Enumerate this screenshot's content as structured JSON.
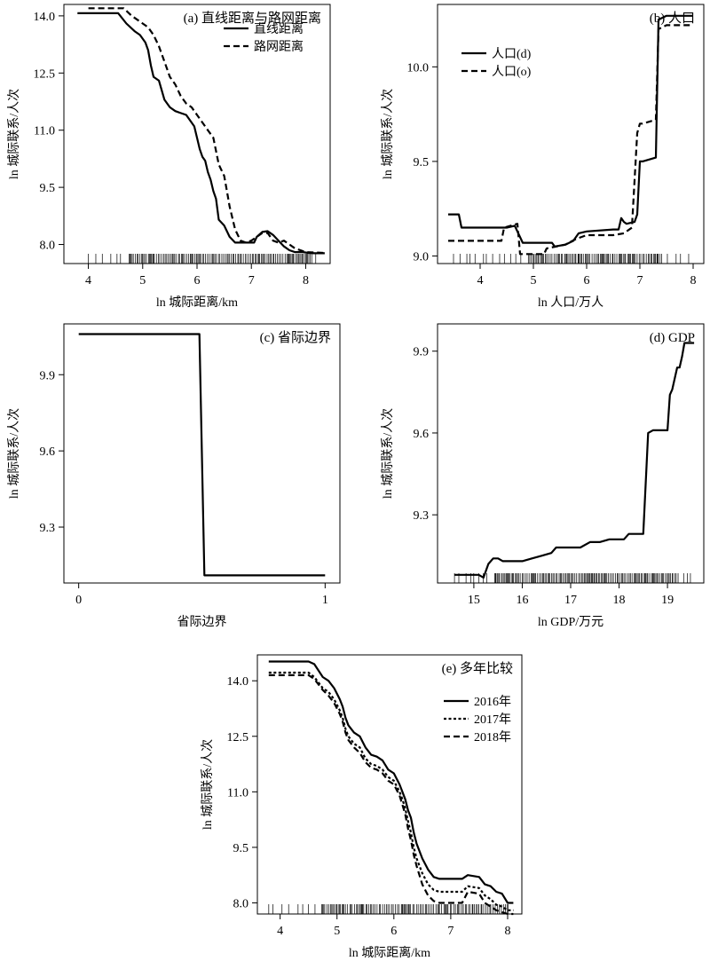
{
  "chart_data": [
    {
      "id": "a",
      "type": "line",
      "title": "(a) 直线距离与路网距离",
      "xlabel": "ln 城际距离/km",
      "ylabel": "ln 城际联系/人次",
      "xlim": [
        3.55,
        8.45
      ],
      "ylim": [
        7.5,
        14.3
      ],
      "xticks": [
        4,
        5,
        6,
        7,
        8
      ],
      "xtick_labels": [
        "4",
        "5",
        "6",
        "7",
        "8"
      ],
      "yticks": [
        8.0,
        9.5,
        11.0,
        12.5,
        14.0
      ],
      "ytick_labels": [
        "8.0",
        "9.5",
        "11.0",
        "12.5",
        "14.0"
      ],
      "legend_position": "top-right",
      "rug": {
        "from": 4.0,
        "to": 8.3,
        "dense_from": 4.6,
        "dense_to": 8.1
      },
      "series": [
        {
          "name": "直线距离",
          "dash": "solid",
          "x": [
            3.8,
            4.55,
            4.7,
            4.85,
            4.95,
            5.05,
            5.1,
            5.15,
            5.2,
            5.3,
            5.4,
            5.5,
            5.6,
            5.7,
            5.8,
            5.85,
            5.95,
            6.0,
            6.05,
            6.1,
            6.15,
            6.2,
            6.25,
            6.3,
            6.35,
            6.4,
            6.5,
            6.6,
            6.7,
            6.8,
            6.9,
            7.0,
            7.05,
            7.1,
            7.2,
            7.3,
            7.4,
            7.5,
            7.6,
            7.7,
            7.8,
            7.95,
            8.05,
            8.15,
            8.35
          ],
          "y": [
            14.07,
            14.07,
            13.8,
            13.6,
            13.5,
            13.3,
            13.1,
            12.7,
            12.4,
            12.3,
            11.8,
            11.6,
            11.5,
            11.45,
            11.4,
            11.3,
            11.1,
            10.8,
            10.5,
            10.3,
            10.2,
            9.9,
            9.7,
            9.4,
            9.2,
            8.65,
            8.5,
            8.2,
            8.05,
            8.05,
            8.05,
            8.05,
            8.05,
            8.2,
            8.33,
            8.35,
            8.25,
            8.1,
            7.95,
            7.85,
            7.8,
            7.8,
            7.78,
            7.77,
            7.77
          ]
        },
        {
          "name": "路网距离",
          "dash": "dashed",
          "x": [
            4.0,
            4.65,
            4.8,
            5.0,
            5.1,
            5.2,
            5.3,
            5.4,
            5.5,
            5.6,
            5.7,
            5.8,
            5.9,
            6.0,
            6.1,
            6.2,
            6.3,
            6.4,
            6.5,
            6.55,
            6.6,
            6.7,
            6.8,
            6.9,
            7.0,
            7.1,
            7.2,
            7.3,
            7.4,
            7.5,
            7.6,
            7.7,
            7.8,
            8.0,
            8.35
          ],
          "y": [
            14.2,
            14.2,
            14.0,
            13.8,
            13.7,
            13.5,
            13.2,
            12.8,
            12.4,
            12.2,
            11.9,
            11.7,
            11.6,
            11.4,
            11.2,
            11.0,
            10.8,
            10.1,
            9.8,
            9.4,
            9.0,
            8.4,
            8.1,
            8.05,
            8.1,
            8.2,
            8.3,
            8.3,
            8.1,
            8.05,
            8.1,
            8.0,
            7.9,
            7.8,
            7.78
          ]
        }
      ]
    },
    {
      "id": "b",
      "type": "line",
      "title": "(b) 人口",
      "xlabel": "ln 人口/万人",
      "ylabel": "ln 城际联系/人次",
      "xlim": [
        3.2,
        8.2
      ],
      "ylim": [
        8.96,
        10.33
      ],
      "xticks": [
        4,
        5,
        6,
        7,
        8
      ],
      "xtick_labels": [
        "4",
        "5",
        "6",
        "7",
        "8"
      ],
      "yticks": [
        9.0,
        9.5,
        10.0
      ],
      "ytick_labels": [
        "9.0",
        "9.5",
        "10.0"
      ],
      "legend_position": "top-left",
      "rug": {
        "from": 3.5,
        "to": 8.0,
        "dense_from": 4.9,
        "dense_to": 7.4
      },
      "series": [
        {
          "name": "人口(d)",
          "dash": "solid",
          "x": [
            3.4,
            3.6,
            3.65,
            4.5,
            4.65,
            4.8,
            4.85,
            5.35,
            5.4,
            5.6,
            5.75,
            5.85,
            6.0,
            6.5,
            6.6,
            6.65,
            6.7,
            6.75,
            6.9,
            6.95,
            7.0,
            7.05,
            7.3,
            7.35,
            7.5,
            8.0
          ],
          "y": [
            9.22,
            9.22,
            9.15,
            9.15,
            9.16,
            9.07,
            9.07,
            9.07,
            9.05,
            9.06,
            9.08,
            9.12,
            9.13,
            9.14,
            9.14,
            9.2,
            9.18,
            9.17,
            9.18,
            9.22,
            9.5,
            9.5,
            9.52,
            10.25,
            10.27,
            10.27
          ]
        },
        {
          "name": "人口(o)",
          "dash": "dashed",
          "x": [
            3.4,
            4.4,
            4.45,
            4.7,
            4.75,
            5.2,
            5.25,
            5.6,
            5.8,
            6.0,
            6.5,
            6.7,
            6.85,
            6.95,
            7.0,
            7.05,
            7.3,
            7.35,
            7.5,
            8.0
          ],
          "y": [
            9.08,
            9.08,
            9.15,
            9.17,
            9.01,
            9.01,
            9.04,
            9.06,
            9.09,
            9.11,
            9.11,
            9.12,
            9.15,
            9.65,
            9.7,
            9.7,
            9.72,
            10.2,
            10.22,
            10.22
          ]
        }
      ]
    },
    {
      "id": "c",
      "type": "line",
      "title": "(c) 省际边界",
      "xlabel": "省际边界",
      "ylabel": "ln 城际联系/人次",
      "xlim": [
        -0.06,
        1.06
      ],
      "ylim": [
        9.08,
        10.1
      ],
      "xticks": [
        0,
        1
      ],
      "xtick_labels": [
        "0",
        "1"
      ],
      "yticks": [
        9.3,
        9.6,
        9.9
      ],
      "ytick_labels": [
        "9.3",
        "9.6",
        "9.9"
      ],
      "legend_position": "none",
      "series": [
        {
          "name": "",
          "dash": "solid",
          "x": [
            0,
            0.49,
            0.51,
            1.0
          ],
          "y": [
            10.06,
            10.06,
            9.11,
            9.11
          ]
        }
      ]
    },
    {
      "id": "d",
      "type": "line",
      "title": "(d) GDP",
      "xlabel": "ln GDP/万元",
      "ylabel": "ln 城际联系/人次",
      "xlim": [
        14.25,
        19.75
      ],
      "ylim": [
        9.05,
        10.0
      ],
      "xticks": [
        15,
        16,
        17,
        18,
        19
      ],
      "xtick_labels": [
        "15",
        "16",
        "17",
        "18",
        "19"
      ],
      "yticks": [
        9.3,
        9.6,
        9.9
      ],
      "ytick_labels": [
        "9.3",
        "9.6",
        "9.9"
      ],
      "legend_position": "none",
      "rug": {
        "from": 14.6,
        "to": 19.5,
        "dense_from": 15.4,
        "dense_to": 19.2
      },
      "series": [
        {
          "name": "",
          "dash": "solid",
          "x": [
            14.6,
            15.1,
            15.2,
            15.3,
            15.4,
            15.5,
            15.6,
            16.0,
            16.2,
            16.4,
            16.6,
            16.7,
            16.9,
            17.2,
            17.4,
            17.6,
            17.8,
            18.1,
            18.2,
            18.5,
            18.6,
            18.7,
            19.0,
            19.05,
            19.1,
            19.2,
            19.25,
            19.3,
            19.35,
            19.4,
            19.55
          ],
          "y": [
            9.08,
            9.08,
            9.07,
            9.12,
            9.14,
            9.14,
            9.13,
            9.13,
            9.14,
            9.15,
            9.16,
            9.18,
            9.18,
            9.18,
            9.2,
            9.2,
            9.21,
            9.21,
            9.23,
            9.23,
            9.6,
            9.61,
            9.61,
            9.74,
            9.76,
            9.84,
            9.84,
            9.88,
            9.93,
            9.93,
            9.93
          ]
        }
      ]
    },
    {
      "id": "e",
      "type": "line",
      "title": "(e) 多年比较",
      "xlabel": "ln 城际距离/km",
      "ylabel": "ln 城际联系/人次",
      "xlim": [
        3.6,
        8.25
      ],
      "ylim": [
        7.7,
        14.7
      ],
      "xticks": [
        4,
        5,
        6,
        7,
        8
      ],
      "xtick_labels": [
        "4",
        "5",
        "6",
        "7",
        "8"
      ],
      "yticks": [
        8.0,
        9.5,
        11.0,
        12.5,
        14.0
      ],
      "ytick_labels": [
        "8.0",
        "9.5",
        "11.0",
        "12.5",
        "14.0"
      ],
      "legend_position": "right",
      "rug": {
        "from": 3.8,
        "to": 8.1,
        "dense_from": 4.7,
        "dense_to": 8.0
      },
      "series": [
        {
          "name": "2016年",
          "dash": "solid",
          "x": [
            3.8,
            4.5,
            4.6,
            4.75,
            4.85,
            4.95,
            5.05,
            5.1,
            5.15,
            5.2,
            5.3,
            5.4,
            5.5,
            5.6,
            5.7,
            5.8,
            5.9,
            6.0,
            6.1,
            6.15,
            6.2,
            6.25,
            6.3,
            6.35,
            6.4,
            6.5,
            6.6,
            6.7,
            6.8,
            7.0,
            7.2,
            7.3,
            7.5,
            7.6,
            7.7,
            7.8,
            7.9,
            8.0,
            8.1
          ],
          "y": [
            14.52,
            14.52,
            14.45,
            14.1,
            14.0,
            13.8,
            13.5,
            13.3,
            13.0,
            12.8,
            12.6,
            12.5,
            12.2,
            12.0,
            11.95,
            11.85,
            11.6,
            11.5,
            11.2,
            11.0,
            10.8,
            10.5,
            10.3,
            9.9,
            9.6,
            9.2,
            8.9,
            8.7,
            8.65,
            8.65,
            8.65,
            8.75,
            8.7,
            8.5,
            8.45,
            8.3,
            8.25,
            8.0,
            8.0
          ]
        },
        {
          "name": "2017年",
          "dash": "dotted",
          "x": [
            3.8,
            4.5,
            4.6,
            4.75,
            4.85,
            4.95,
            5.05,
            5.1,
            5.15,
            5.2,
            5.3,
            5.4,
            5.5,
            5.6,
            5.7,
            5.8,
            5.9,
            6.0,
            6.1,
            6.15,
            6.2,
            6.25,
            6.3,
            6.35,
            6.4,
            6.5,
            6.6,
            6.7,
            6.8,
            7.0,
            7.2,
            7.3,
            7.5,
            7.6,
            7.7,
            7.8,
            7.9,
            8.0,
            8.1
          ],
          "y": [
            14.22,
            14.22,
            14.1,
            13.8,
            13.7,
            13.5,
            13.2,
            13.0,
            12.7,
            12.5,
            12.3,
            12.2,
            11.9,
            11.75,
            11.7,
            11.6,
            11.4,
            11.3,
            11.0,
            10.8,
            10.55,
            10.2,
            9.9,
            9.5,
            9.2,
            8.8,
            8.5,
            8.35,
            8.3,
            8.3,
            8.3,
            8.45,
            8.4,
            8.2,
            8.1,
            7.95,
            7.9,
            7.8,
            7.8
          ]
        },
        {
          "name": "2018年",
          "dash": "dashed",
          "x": [
            3.8,
            4.5,
            4.6,
            4.75,
            4.85,
            4.95,
            5.05,
            5.1,
            5.15,
            5.2,
            5.3,
            5.4,
            5.5,
            5.6,
            5.7,
            5.8,
            5.9,
            6.0,
            6.1,
            6.15,
            6.2,
            6.25,
            6.3,
            6.35,
            6.4,
            6.5,
            6.6,
            6.7,
            6.8,
            7.0,
            7.2,
            7.3,
            7.5,
            7.6,
            7.7,
            7.8,
            7.9,
            8.0,
            8.1
          ],
          "y": [
            14.15,
            14.15,
            14.05,
            13.75,
            13.6,
            13.4,
            13.1,
            12.9,
            12.6,
            12.4,
            12.2,
            12.05,
            11.8,
            11.65,
            11.6,
            11.5,
            11.3,
            11.2,
            10.9,
            10.65,
            10.4,
            10.0,
            9.7,
            9.3,
            9.0,
            8.5,
            8.2,
            8.05,
            8.0,
            8.0,
            8.0,
            8.3,
            8.25,
            8.0,
            7.9,
            7.8,
            7.75,
            7.7,
            7.7
          ]
        }
      ]
    }
  ]
}
